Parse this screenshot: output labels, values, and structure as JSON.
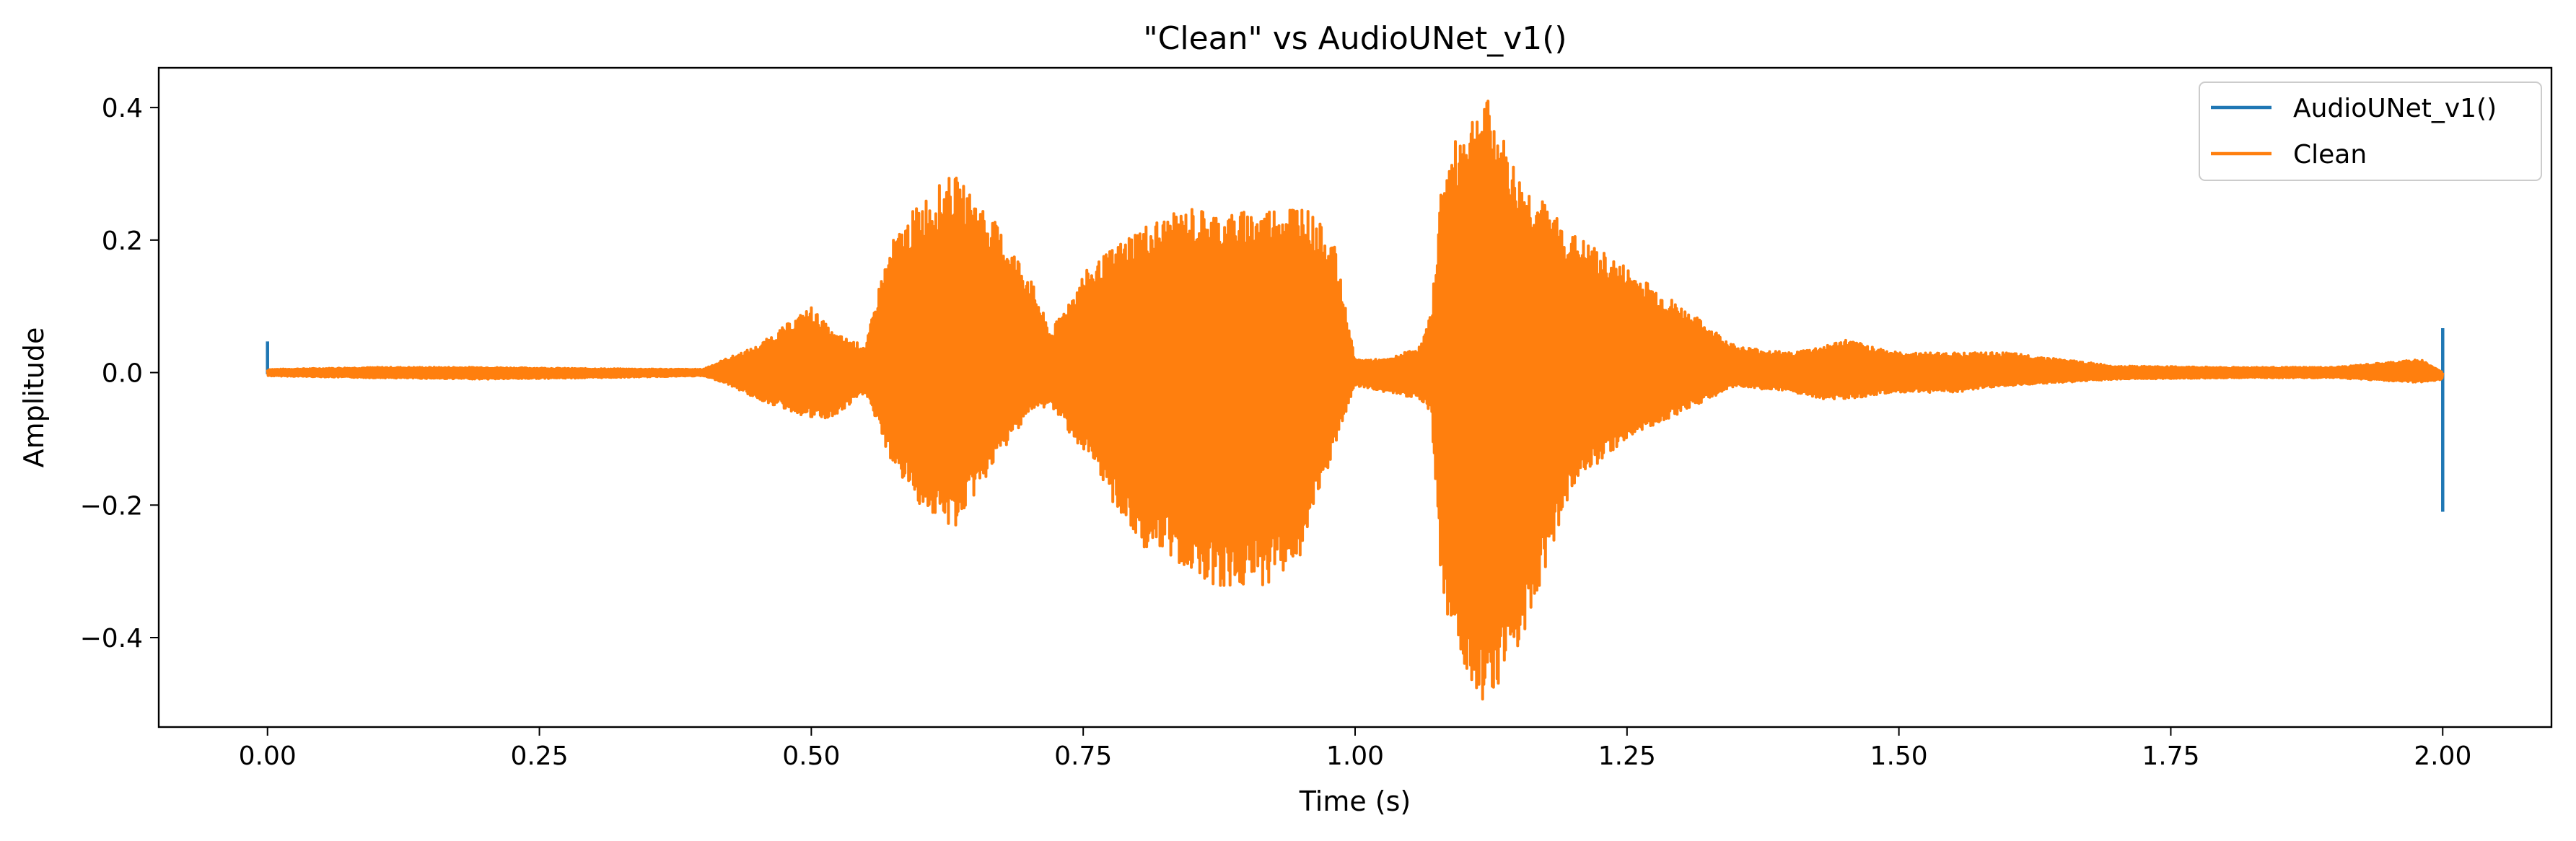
{
  "chart_data": {
    "type": "line",
    "title": "\"Clean\" vs AudioUNet_v1()",
    "xlabel": "Time (s)",
    "ylabel": "Amplitude",
    "xlim": [
      -0.1,
      2.1
    ],
    "ylim": [
      -0.535,
      0.46
    ],
    "x_ticks": [
      0.0,
      0.25,
      0.5,
      0.75,
      1.0,
      1.25,
      1.5,
      1.75,
      2.0
    ],
    "x_tick_labels": [
      "0.00",
      "0.25",
      "0.50",
      "0.75",
      "1.00",
      "1.25",
      "1.50",
      "1.75",
      "2.00"
    ],
    "y_ticks": [
      -0.4,
      -0.2,
      0.0,
      0.2,
      0.4
    ],
    "y_tick_labels": [
      "−0.4",
      "−0.2",
      "0.0",
      "0.2",
      "0.4"
    ],
    "grid": false,
    "legend_position": "top-right",
    "duration_s": 2.0,
    "series": [
      {
        "name": "AudioUNet_v1()",
        "color": "#1f77b4",
        "spikes": [
          {
            "t": 0.0,
            "min": -0.005,
            "max": 0.047
          },
          {
            "t": 2.0,
            "min": -0.21,
            "max": 0.067
          }
        ]
      },
      {
        "name": "Clean",
        "color": "#ff7f0e",
        "envelope": {
          "t": [
            0.0,
            0.1,
            0.2,
            0.3,
            0.4,
            0.42,
            0.45,
            0.5,
            0.52,
            0.55,
            0.565,
            0.575,
            0.6,
            0.63,
            0.66,
            0.7,
            0.72,
            0.75,
            0.8,
            0.85,
            0.88,
            0.92,
            0.95,
            0.98,
            1.0,
            1.03,
            1.06,
            1.07,
            1.08,
            1.1,
            1.12,
            1.15,
            1.2,
            1.25,
            1.3,
            1.35,
            1.4,
            1.43,
            1.45,
            1.5,
            1.55,
            1.6,
            1.7,
            1.8,
            1.9,
            1.98,
            2.0
          ],
          "max": [
            0.005,
            0.008,
            0.008,
            0.006,
            0.005,
            0.02,
            0.04,
            0.1,
            0.06,
            0.04,
            0.15,
            0.2,
            0.26,
            0.3,
            0.25,
            0.15,
            0.06,
            0.15,
            0.22,
            0.25,
            0.24,
            0.25,
            0.26,
            0.2,
            0.02,
            0.02,
            0.04,
            0.09,
            0.3,
            0.38,
            0.42,
            0.3,
            0.21,
            0.16,
            0.1,
            0.04,
            0.03,
            0.04,
            0.05,
            0.03,
            0.03,
            0.03,
            0.01,
            0.008,
            0.008,
            0.02,
            0.0
          ],
          "min": [
            -0.005,
            -0.008,
            -0.01,
            -0.008,
            -0.005,
            -0.015,
            -0.04,
            -0.07,
            -0.07,
            -0.03,
            -0.1,
            -0.14,
            -0.2,
            -0.24,
            -0.16,
            -0.06,
            -0.05,
            -0.12,
            -0.26,
            -0.3,
            -0.33,
            -0.32,
            -0.28,
            -0.12,
            -0.02,
            -0.03,
            -0.04,
            -0.06,
            -0.34,
            -0.45,
            -0.5,
            -0.42,
            -0.17,
            -0.1,
            -0.06,
            -0.02,
            -0.03,
            -0.04,
            -0.04,
            -0.03,
            -0.03,
            -0.02,
            -0.01,
            -0.008,
            -0.008,
            -0.015,
            -0.01
          ]
        }
      }
    ]
  }
}
